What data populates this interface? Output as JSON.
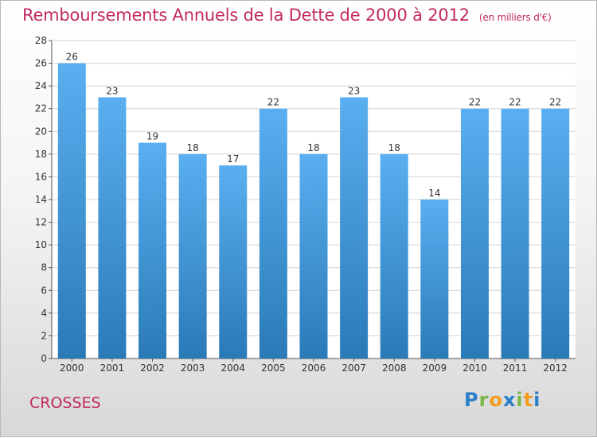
{
  "title": "Remboursements Annuels de la Dette de 2000 à 2012",
  "unit_note": "(en milliers d'€)",
  "city": "CROSSES",
  "logo": {
    "letters": [
      "P",
      "r",
      "o",
      "x",
      "i",
      "t",
      "i"
    ],
    "colors": [
      "#2a7fc6",
      "#7ab648",
      "#f29c1f",
      "#2a7fc6",
      "#7ab648",
      "#f29c1f",
      "#2a7fc6"
    ]
  },
  "colors": {
    "title": "#c12a62",
    "bar_top": "#5aaff0",
    "bar_bottom": "#2a7ab8"
  },
  "chart_data": {
    "type": "bar",
    "categories": [
      "2000",
      "2001",
      "2002",
      "2003",
      "2004",
      "2005",
      "2006",
      "2007",
      "2008",
      "2009",
      "2010",
      "2011",
      "2012"
    ],
    "values": [
      26,
      23,
      19,
      18,
      17,
      22,
      18,
      23,
      18,
      14,
      22,
      22,
      22
    ],
    "ylim": [
      0,
      28
    ],
    "yticks": [
      0,
      2,
      4,
      6,
      8,
      10,
      12,
      14,
      16,
      18,
      20,
      22,
      24,
      26,
      28
    ],
    "grid": true
  }
}
